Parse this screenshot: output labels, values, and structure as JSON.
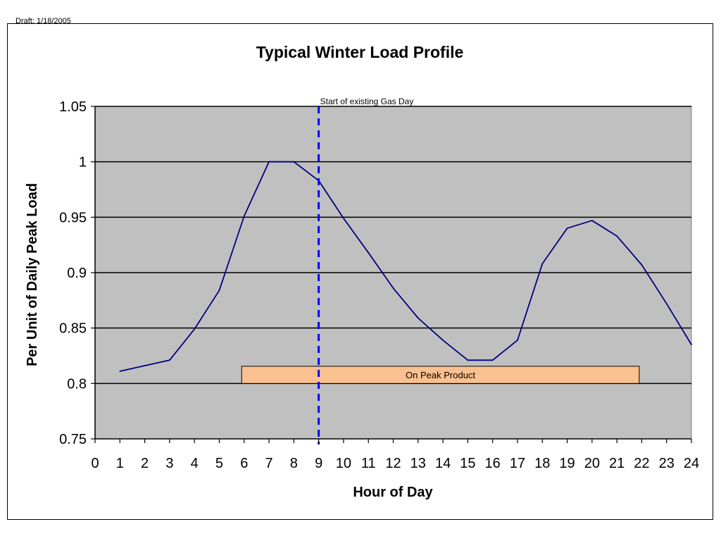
{
  "header": {
    "draft_label": "Draft: 1/18/2005"
  },
  "chart_data": {
    "type": "line",
    "title": "Typical Winter Load Profile",
    "xlabel": "Hour of Day",
    "ylabel": "Per Unit of Daily Peak Load",
    "xlim": [
      0,
      24
    ],
    "ylim": [
      0.75,
      1.05
    ],
    "x_ticks": [
      0,
      1,
      2,
      3,
      4,
      5,
      6,
      7,
      8,
      9,
      10,
      11,
      12,
      13,
      14,
      15,
      16,
      17,
      18,
      19,
      20,
      21,
      22,
      23,
      24
    ],
    "y_ticks": [
      0.75,
      0.8,
      0.85,
      0.9,
      0.95,
      1,
      1.05
    ],
    "y_tick_labels": [
      "0.75",
      "0.8",
      "0.85",
      "0.9",
      "0.95",
      "1",
      "1.05"
    ],
    "grid": "horizontal",
    "plot_background": "#c0c0c0",
    "series": [
      {
        "color": "#000080",
        "x": [
          1,
          2,
          3,
          4,
          5,
          6,
          7,
          8,
          9,
          10,
          11,
          12,
          13,
          14,
          15,
          16,
          17,
          18,
          19,
          20,
          21,
          22,
          23,
          24
        ],
        "values": [
          0.811,
          0.816,
          0.821,
          0.849,
          0.884,
          0.951,
          1.0,
          1.0,
          0.983,
          0.949,
          0.918,
          0.886,
          0.859,
          0.839,
          0.821,
          0.821,
          0.839,
          0.908,
          0.94,
          0.947,
          0.933,
          0.907,
          0.872,
          0.835
        ]
      }
    ],
    "annotations": [
      {
        "type": "vline",
        "x": 9,
        "color": "#0000ff",
        "style": "dashed",
        "label": "Start of existing Gas Day"
      },
      {
        "type": "band",
        "x_start": 5.9,
        "x_end": 21.9,
        "y_start": 0.8,
        "y_end": 0.8155,
        "fill": "#fac08f",
        "label": "On Peak Product"
      }
    ]
  }
}
